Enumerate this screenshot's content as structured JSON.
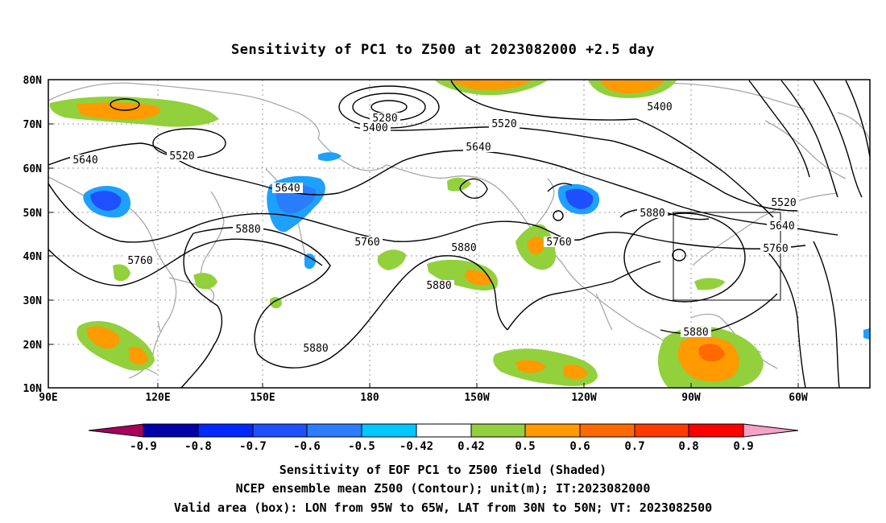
{
  "title": "Sensitivity of PC1 to Z500 at 2023082000 +2.5 day",
  "map": {
    "lat_labels": [
      "80N",
      "70N",
      "60N",
      "50N",
      "40N",
      "30N",
      "20N",
      "10N"
    ],
    "lon_labels": [
      "90E",
      "120E",
      "150E",
      "180",
      "150W",
      "120W",
      "90W",
      "60W"
    ],
    "contour_labels": [
      {
        "id": "c5280",
        "text": "5280"
      },
      {
        "id": "c5400a",
        "text": "5400"
      },
      {
        "id": "c5400b",
        "text": "5400"
      },
      {
        "id": "c5520a",
        "text": "5520"
      },
      {
        "id": "c5520b",
        "text": "5520"
      },
      {
        "id": "c5520c",
        "text": "5520"
      },
      {
        "id": "c5640a",
        "text": "5640"
      },
      {
        "id": "c5640b",
        "text": "5640"
      },
      {
        "id": "c5640c",
        "text": "5640"
      },
      {
        "id": "c5640d",
        "text": "5640"
      },
      {
        "id": "c5760a",
        "text": "5760"
      },
      {
        "id": "c5760b",
        "text": "5760"
      },
      {
        "id": "c5760c",
        "text": "5760"
      },
      {
        "id": "c5760d",
        "text": "5760"
      },
      {
        "id": "c5880a",
        "text": "5880"
      },
      {
        "id": "c5880b",
        "text": "5880"
      },
      {
        "id": "c5880c",
        "text": "5880"
      },
      {
        "id": "c5880d",
        "text": "5880"
      },
      {
        "id": "c5880e",
        "text": "5880"
      },
      {
        "id": "c5880f",
        "text": "5880"
      }
    ],
    "valid_box": {
      "lon": "95W to 65W",
      "lat": "30N to 50N"
    }
  },
  "colorbar": {
    "labels": [
      "-0.9",
      "-0.8",
      "-0.7",
      "-0.6",
      "-0.5",
      "-0.42",
      "0.42",
      "0.5",
      "0.6",
      "0.7",
      "0.8",
      "0.9"
    ],
    "colors": [
      "#a8005c",
      "#0000a8",
      "#0028ff",
      "#1e50ff",
      "#2a7dff",
      "#1ea0ff",
      "#00c8ff",
      "#ffffff",
      "#92d03c",
      "#ff9a00",
      "#ff6a00",
      "#ff3a00",
      "#ff0000",
      "#f7a0c8"
    ]
  },
  "captions": [
    "Sensitivity of EOF PC1 to Z500 field (Shaded)",
    "NCEP ensemble mean Z500 (Contour); unit(m); IT:2023082000",
    "Valid area (box): LON from 95W to 65W, LAT from 30N to 50N; VT: 2023082500"
  ]
}
